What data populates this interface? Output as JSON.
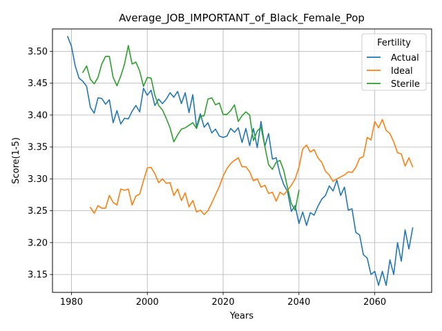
{
  "chart_data": {
    "type": "line",
    "title": "Average_JOB_IMPORTANT_of_Black_Female_Pop",
    "xlabel": "Years",
    "ylabel": "Score(1-5)",
    "xlim": [
      1975,
      2075
    ],
    "ylim": [
      3.122,
      3.535
    ],
    "x_ticks": [
      1980,
      2000,
      2020,
      2040,
      2060
    ],
    "y_ticks": [
      3.15,
      3.2,
      3.25,
      3.3,
      3.35,
      3.4,
      3.45,
      3.5
    ],
    "y_tick_labels": [
      "3.15",
      "3.20",
      "3.25",
      "3.30",
      "3.35",
      "3.40",
      "3.45",
      "3.50"
    ],
    "grid": true,
    "legend": {
      "title": "Fertility",
      "position": "top-right"
    },
    "series": [
      {
        "name": "Actual",
        "color": "#1f77b4",
        "x": [
          1979,
          1980,
          1981,
          1982,
          1983,
          1984,
          1985,
          1986,
          1987,
          1988,
          1989,
          1990,
          1991,
          1992,
          1993,
          1994,
          1995,
          1996,
          1997,
          1998,
          1999,
          2000,
          2001,
          2002,
          2003,
          2004,
          2005,
          2006,
          2007,
          2008,
          2009,
          2010,
          2011,
          2012,
          2013,
          2014,
          2015,
          2016,
          2017,
          2018,
          2019,
          2020,
          2021,
          2022,
          2023,
          2024,
          2025,
          2026,
          2027,
          2028,
          2029,
          2030,
          2031,
          2032,
          2033,
          2034,
          2035,
          2036,
          2037,
          2038,
          2039,
          2040,
          2041,
          2042,
          2043,
          2044,
          2045,
          2046,
          2047,
          2048,
          2049,
          2050,
          2051,
          2052,
          2053,
          2054,
          2055,
          2056,
          2057,
          2058,
          2059,
          2060,
          2061,
          2062,
          2063,
          2064,
          2065,
          2066,
          2067,
          2068,
          2069,
          2070
        ],
        "values": [
          3.523,
          3.508,
          3.477,
          3.458,
          3.453,
          3.445,
          3.412,
          3.403,
          3.427,
          3.426,
          3.417,
          3.424,
          3.388,
          3.407,
          3.386,
          3.395,
          3.394,
          3.406,
          3.415,
          3.405,
          3.442,
          3.431,
          3.439,
          3.415,
          3.425,
          3.418,
          3.425,
          3.435,
          3.428,
          3.437,
          3.418,
          3.435,
          3.404,
          3.432,
          3.381,
          3.402,
          3.381,
          3.388,
          3.372,
          3.378,
          3.367,
          3.365,
          3.367,
          3.379,
          3.373,
          3.38,
          3.357,
          3.379,
          3.352,
          3.379,
          3.349,
          3.39,
          3.351,
          3.371,
          3.331,
          3.333,
          3.308,
          3.291,
          3.28,
          3.249,
          3.258,
          3.23,
          3.248,
          3.227,
          3.247,
          3.243,
          3.257,
          3.268,
          3.274,
          3.289,
          3.281,
          3.298,
          3.274,
          3.287,
          3.251,
          3.253,
          3.216,
          3.212,
          3.181,
          3.176,
          3.15,
          3.155,
          3.133,
          3.155,
          3.133,
          3.173,
          3.15,
          3.2,
          3.171,
          3.22,
          3.19,
          3.223
        ]
      },
      {
        "name": "Ideal",
        "color": "#ff7f0e",
        "x": [
          1985,
          1986,
          1987,
          1988,
          1989,
          1990,
          1991,
          1992,
          1993,
          1994,
          1995,
          1996,
          1997,
          1998,
          1999,
          2000,
          2001,
          2002,
          2003,
          2004,
          2005,
          2006,
          2007,
          2008,
          2009,
          2010,
          2011,
          2012,
          2013,
          2014,
          2015,
          2016,
          2017,
          2018,
          2019,
          2020,
          2021,
          2022,
          2023,
          2024,
          2025,
          2026,
          2027,
          2028,
          2029,
          2030,
          2031,
          2032,
          2033,
          2034,
          2035,
          2036,
          2037,
          2038,
          2039,
          2040,
          2041,
          2042,
          2043,
          2044,
          2045,
          2046,
          2047,
          2048,
          2049,
          2050,
          2051,
          2052,
          2053,
          2054,
          2055,
          2056,
          2057,
          2058,
          2059,
          2060,
          2061,
          2062,
          2063,
          2064,
          2065,
          2066,
          2067,
          2068,
          2069,
          2070
        ],
        "values": [
          3.255,
          3.246,
          3.258,
          3.254,
          3.254,
          3.274,
          3.263,
          3.259,
          3.284,
          3.282,
          3.284,
          3.259,
          3.273,
          3.276,
          3.297,
          3.317,
          3.318,
          3.308,
          3.294,
          3.3,
          3.293,
          3.294,
          3.274,
          3.284,
          3.266,
          3.278,
          3.256,
          3.266,
          3.248,
          3.251,
          3.244,
          3.25,
          3.262,
          3.275,
          3.288,
          3.304,
          3.316,
          3.324,
          3.329,
          3.333,
          3.319,
          3.319,
          3.311,
          3.297,
          3.3,
          3.287,
          3.29,
          3.277,
          3.279,
          3.265,
          3.279,
          3.275,
          3.282,
          3.29,
          3.3,
          3.318,
          3.347,
          3.353,
          3.342,
          3.346,
          3.333,
          3.326,
          3.312,
          3.306,
          3.296,
          3.3,
          3.303,
          3.306,
          3.311,
          3.31,
          3.318,
          3.332,
          3.335,
          3.365,
          3.361,
          3.39,
          3.38,
          3.393,
          3.376,
          3.371,
          3.358,
          3.341,
          3.339,
          3.32,
          3.333,
          3.319
        ]
      },
      {
        "name": "Sterile",
        "color": "#2ca02c",
        "x": [
          1983,
          1984,
          1985,
          1986,
          1987,
          1988,
          1989,
          1990,
          1991,
          1992,
          1993,
          1994,
          1995,
          1996,
          1997,
          1998,
          1999,
          2000,
          2001,
          2002,
          2003,
          2004,
          2005,
          2006,
          2007,
          2008,
          2009,
          2010,
          2011,
          2012,
          2013,
          2014,
          2015,
          2016,
          2017,
          2018,
          2019,
          2020,
          2021,
          2022,
          2023,
          2024,
          2025,
          2026,
          2027,
          2028,
          2029,
          2030,
          2031,
          2032,
          2033,
          2034,
          2035,
          2036,
          2037,
          2038,
          2039,
          2040
        ],
        "values": [
          3.467,
          3.477,
          3.456,
          3.449,
          3.459,
          3.48,
          3.492,
          3.492,
          3.459,
          3.446,
          3.461,
          3.48,
          3.509,
          3.48,
          3.483,
          3.469,
          3.445,
          3.459,
          3.458,
          3.431,
          3.415,
          3.408,
          3.395,
          3.38,
          3.358,
          3.369,
          3.378,
          3.38,
          3.384,
          3.388,
          3.379,
          3.398,
          3.399,
          3.425,
          3.427,
          3.416,
          3.419,
          3.401,
          3.401,
          3.407,
          3.416,
          3.39,
          3.399,
          3.405,
          3.4,
          3.36,
          3.375,
          3.381,
          3.351,
          3.322,
          3.315,
          3.326,
          3.329,
          3.313,
          3.286,
          3.261,
          3.251,
          3.282
        ]
      }
    ]
  }
}
